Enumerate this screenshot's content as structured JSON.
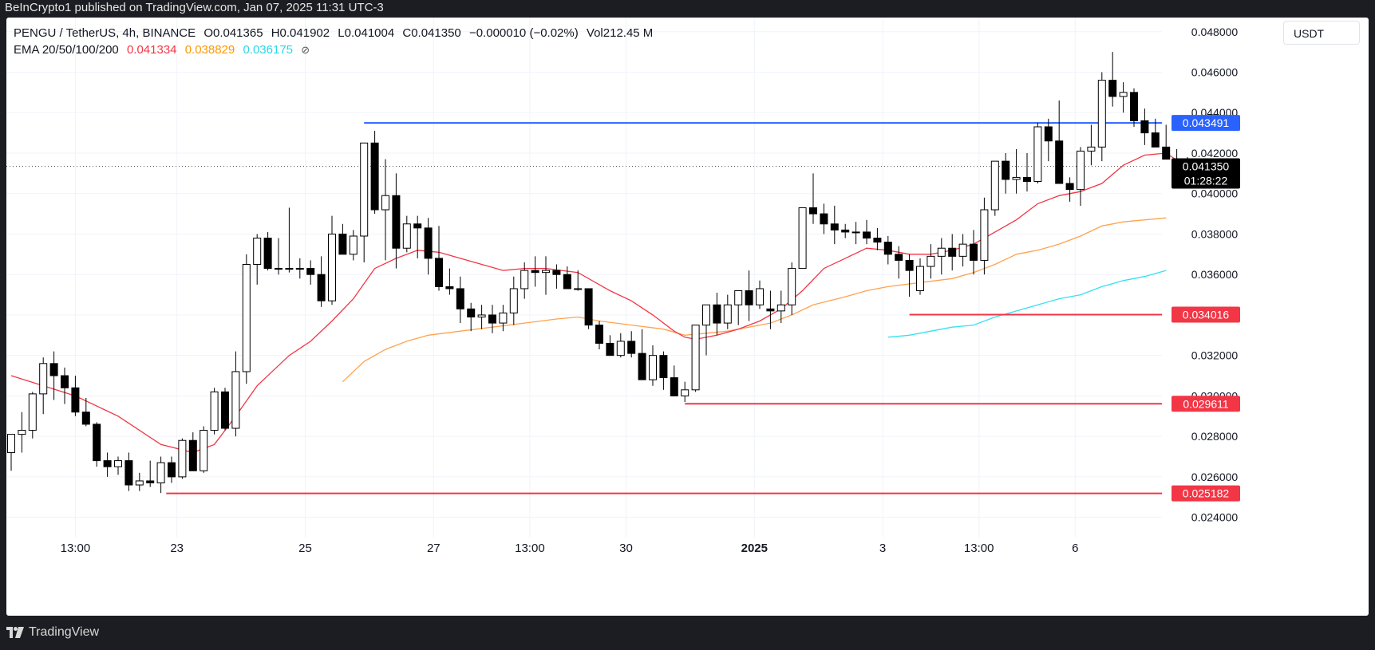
{
  "header": {
    "publisher": "BeInCrypto1 published on TradingView.com, Jan 07, 2025 11:31 UTC-3"
  },
  "legend": {
    "symbol": "PENGU / TetherUS, 4h, BINANCE",
    "open": "O0.041365",
    "high": "H0.041902",
    "low": "L0.041004",
    "close": "C0.041350",
    "change": "−0.000010 (−0.02%)",
    "volume": "Vol212.45 M",
    "ema_label": "EMA 20/50/100/200",
    "ema20": "0.041334",
    "ema50": "0.038829",
    "ema100": "0.036175",
    "eye_icon": "eye-off-icon"
  },
  "currency_button": "USDT",
  "footer": {
    "brand": "TradingView"
  },
  "colors": {
    "up": "#ffffff",
    "down": "#000000",
    "wick": "#000000",
    "ema20": "#f23645",
    "ema50": "#ffa24d",
    "ema100": "#33e1f2",
    "resistance": "#2962ff",
    "support": "#f23645"
  },
  "chart_data": {
    "type": "candlestick",
    "title": "PENGU / TetherUS, 4h, BINANCE",
    "currency": "USDT",
    "y_ticks": [
      "0.024000",
      "0.026000",
      "0.028000",
      "0.030000",
      "0.032000",
      "0.034000",
      "0.036000",
      "0.038000",
      "0.040000",
      "0.042000",
      "0.044000",
      "0.046000",
      "0.048000"
    ],
    "ylim": [
      0.023,
      0.0487
    ],
    "x_labels": [
      {
        "label": "13:00",
        "bar": 6
      },
      {
        "label": "23",
        "bar": 15.5
      },
      {
        "label": "25",
        "bar": 27.5
      },
      {
        "label": "27",
        "bar": 39.5
      },
      {
        "label": "13:00",
        "bar": 48.5
      },
      {
        "label": "30",
        "bar": 57.5
      },
      {
        "label": "2025",
        "bar": 69.5,
        "bold": true
      },
      {
        "label": "3",
        "bar": 81.5
      },
      {
        "label": "13:00",
        "bar": 90.5
      },
      {
        "label": "6",
        "bar": 99.5
      }
    ],
    "candles": [
      [
        0.0272,
        0.0281,
        0.0263,
        0.0281
      ],
      [
        0.0281,
        0.0292,
        0.0272,
        0.0283
      ],
      [
        0.0283,
        0.0302,
        0.0279,
        0.0301
      ],
      [
        0.0301,
        0.0319,
        0.0291,
        0.0316
      ],
      [
        0.0316,
        0.0322,
        0.0298,
        0.031
      ],
      [
        0.031,
        0.0314,
        0.0296,
        0.0304
      ],
      [
        0.0304,
        0.031,
        0.029,
        0.0292
      ],
      [
        0.0292,
        0.0299,
        0.0285,
        0.0286
      ],
      [
        0.0286,
        0.0287,
        0.0265,
        0.0268
      ],
      [
        0.0268,
        0.0272,
        0.026,
        0.0265
      ],
      [
        0.0265,
        0.027,
        0.0261,
        0.0268
      ],
      [
        0.0268,
        0.0272,
        0.0253,
        0.0256
      ],
      [
        0.0256,
        0.0262,
        0.0253,
        0.0258
      ],
      [
        0.0258,
        0.0268,
        0.0255,
        0.0257
      ],
      [
        0.0257,
        0.027,
        0.0252,
        0.0267
      ],
      [
        0.0267,
        0.027,
        0.0257,
        0.026
      ],
      [
        0.026,
        0.0279,
        0.0259,
        0.0278
      ],
      [
        0.0278,
        0.0282,
        0.0263,
        0.0263
      ],
      [
        0.0263,
        0.0285,
        0.0262,
        0.0283
      ],
      [
        0.0283,
        0.0304,
        0.0281,
        0.0302
      ],
      [
        0.0302,
        0.0304,
        0.0283,
        0.0284
      ],
      [
        0.0284,
        0.0322,
        0.028,
        0.0312
      ],
      [
        0.0312,
        0.037,
        0.0306,
        0.0365
      ],
      [
        0.0365,
        0.038,
        0.0355,
        0.0378
      ],
      [
        0.0378,
        0.0381,
        0.0362,
        0.0363
      ],
      [
        0.0363,
        0.0378,
        0.036,
        0.0363
      ],
      [
        0.0363,
        0.0393,
        0.0361,
        0.0363
      ],
      [
        0.0363,
        0.0368,
        0.0358,
        0.0363
      ],
      [
        0.0363,
        0.0367,
        0.0355,
        0.036
      ],
      [
        0.036,
        0.0369,
        0.0344,
        0.0347
      ],
      [
        0.0347,
        0.0389,
        0.0345,
        0.038
      ],
      [
        0.038,
        0.0385,
        0.037,
        0.037
      ],
      [
        0.037,
        0.0382,
        0.0367,
        0.0379
      ],
      [
        0.0379,
        0.0423,
        0.0366,
        0.0425
      ],
      [
        0.0425,
        0.0431,
        0.039,
        0.0392
      ],
      [
        0.0392,
        0.0417,
        0.0367,
        0.0399
      ],
      [
        0.0399,
        0.041,
        0.0363,
        0.0373
      ],
      [
        0.0373,
        0.0389,
        0.0371,
        0.0385
      ],
      [
        0.0385,
        0.0389,
        0.0368,
        0.0383
      ],
      [
        0.0383,
        0.0388,
        0.036,
        0.0368
      ],
      [
        0.0368,
        0.0384,
        0.0352,
        0.0354
      ],
      [
        0.0354,
        0.0363,
        0.035,
        0.0353
      ],
      [
        0.0353,
        0.0359,
        0.0336,
        0.0343
      ],
      [
        0.0343,
        0.0346,
        0.0332,
        0.0339
      ],
      [
        0.0339,
        0.0345,
        0.0333,
        0.034
      ],
      [
        0.034,
        0.0345,
        0.0331,
        0.0336
      ],
      [
        0.0336,
        0.0345,
        0.0332,
        0.0341
      ],
      [
        0.0341,
        0.0359,
        0.0335,
        0.0353
      ],
      [
        0.0353,
        0.0366,
        0.0348,
        0.0362
      ],
      [
        0.0362,
        0.0369,
        0.0354,
        0.0361
      ],
      [
        0.0361,
        0.0369,
        0.035,
        0.0362
      ],
      [
        0.0362,
        0.0365,
        0.0353,
        0.036
      ],
      [
        0.036,
        0.0364,
        0.0353,
        0.0353
      ],
      [
        0.0353,
        0.0362,
        0.0352,
        0.0353
      ],
      [
        0.0353,
        0.0353,
        0.0333,
        0.0335
      ],
      [
        0.0335,
        0.0337,
        0.0323,
        0.0326
      ],
      [
        0.0326,
        0.033,
        0.0321,
        0.032
      ],
      [
        0.032,
        0.0331,
        0.0319,
        0.0327
      ],
      [
        0.0327,
        0.0332,
        0.0319,
        0.0321
      ],
      [
        0.0321,
        0.0333,
        0.031,
        0.0308
      ],
      [
        0.0308,
        0.0325,
        0.0305,
        0.032
      ],
      [
        0.032,
        0.0322,
        0.0303,
        0.0309
      ],
      [
        0.0309,
        0.0315,
        0.03,
        0.03
      ],
      [
        0.03,
        0.0307,
        0.0297,
        0.0303
      ],
      [
        0.0303,
        0.0335,
        0.0302,
        0.0335
      ],
      [
        0.0335,
        0.0345,
        0.032,
        0.0345
      ],
      [
        0.0345,
        0.0351,
        0.033,
        0.0336
      ],
      [
        0.0336,
        0.035,
        0.0333,
        0.0345
      ],
      [
        0.0345,
        0.035,
        0.0335,
        0.0352
      ],
      [
        0.0352,
        0.0362,
        0.0337,
        0.0345
      ],
      [
        0.0345,
        0.0357,
        0.0343,
        0.0353
      ],
      [
        0.0343,
        0.0352,
        0.0333,
        0.0342
      ],
      [
        0.0342,
        0.0352,
        0.0336,
        0.0345
      ],
      [
        0.0345,
        0.0366,
        0.034,
        0.0363
      ],
      [
        0.0363,
        0.0393,
        0.0363,
        0.0393
      ],
      [
        0.0393,
        0.041,
        0.0385,
        0.039
      ],
      [
        0.039,
        0.0395,
        0.038,
        0.0385
      ],
      [
        0.0385,
        0.0394,
        0.0375,
        0.0382
      ],
      [
        0.0382,
        0.0385,
        0.0378,
        0.0381
      ],
      [
        0.0381,
        0.0386,
        0.0375,
        0.0381
      ],
      [
        0.0381,
        0.0387,
        0.0375,
        0.0378
      ],
      [
        0.0378,
        0.0383,
        0.0372,
        0.0376
      ],
      [
        0.0376,
        0.0379,
        0.0365,
        0.037
      ],
      [
        0.037,
        0.0374,
        0.0358,
        0.0367
      ],
      [
        0.0367,
        0.037,
        0.0349,
        0.0362
      ],
      [
        0.0352,
        0.0368,
        0.035,
        0.0364
      ],
      [
        0.0364,
        0.0375,
        0.0358,
        0.0369
      ],
      [
        0.0369,
        0.0378,
        0.036,
        0.0373
      ],
      [
        0.0373,
        0.038,
        0.0362,
        0.0369
      ],
      [
        0.0369,
        0.038,
        0.0364,
        0.0375
      ],
      [
        0.0375,
        0.0382,
        0.036,
        0.0367
      ],
      [
        0.0367,
        0.0398,
        0.036,
        0.0392
      ],
      [
        0.0392,
        0.0416,
        0.0389,
        0.0416
      ],
      [
        0.0416,
        0.042,
        0.04,
        0.0407
      ],
      [
        0.0407,
        0.0422,
        0.04,
        0.0408
      ],
      [
        0.0408,
        0.042,
        0.0401,
        0.0406
      ],
      [
        0.0406,
        0.0435,
        0.0405,
        0.0433
      ],
      [
        0.0433,
        0.0437,
        0.0416,
        0.0426
      ],
      [
        0.0426,
        0.0446,
        0.0405,
        0.0405
      ],
      [
        0.0405,
        0.0408,
        0.0396,
        0.0402
      ],
      [
        0.0402,
        0.0423,
        0.0394,
        0.0421
      ],
      [
        0.0421,
        0.0434,
        0.0414,
        0.0423
      ],
      [
        0.0423,
        0.046,
        0.0416,
        0.0456
      ],
      [
        0.0456,
        0.047,
        0.0443,
        0.0448
      ],
      [
        0.0448,
        0.0455,
        0.044,
        0.045
      ],
      [
        0.045,
        0.0452,
        0.0433,
        0.0436
      ],
      [
        0.0436,
        0.0442,
        0.0424,
        0.043
      ],
      [
        0.043,
        0.0437,
        0.0423,
        0.0423
      ],
      [
        0.0423,
        0.0434,
        0.0418,
        0.0417
      ],
      [
        0.0417,
        0.0422,
        0.0413,
        0.0414
      ],
      [
        0.0413,
        0.0418,
        0.041,
        0.0414
      ]
    ],
    "ema20": [
      [
        0,
        0.031
      ],
      [
        6,
        0.03
      ],
      [
        10,
        0.029
      ],
      [
        14,
        0.0276
      ],
      [
        17,
        0.0272
      ],
      [
        19,
        0.0276
      ],
      [
        21,
        0.029
      ],
      [
        23,
        0.0305
      ],
      [
        26,
        0.032
      ],
      [
        28,
        0.0327
      ],
      [
        30,
        0.0337
      ],
      [
        32,
        0.0348
      ],
      [
        34,
        0.0363
      ],
      [
        36,
        0.0368
      ],
      [
        38,
        0.0372
      ],
      [
        40,
        0.0371
      ],
      [
        42,
        0.0368
      ],
      [
        44,
        0.0365
      ],
      [
        46,
        0.0362
      ],
      [
        48,
        0.0363
      ],
      [
        50,
        0.0363
      ],
      [
        53,
        0.0361
      ],
      [
        56,
        0.0352
      ],
      [
        58,
        0.0347
      ],
      [
        60,
        0.034
      ],
      [
        62,
        0.0332
      ],
      [
        63,
        0.0329
      ],
      [
        64,
        0.0328
      ],
      [
        66,
        0.033
      ],
      [
        68,
        0.0333
      ],
      [
        70,
        0.0337
      ],
      [
        72,
        0.0343
      ],
      [
        74,
        0.0352
      ],
      [
        76,
        0.0363
      ],
      [
        78,
        0.0368
      ],
      [
        80,
        0.0373
      ],
      [
        82,
        0.0372
      ],
      [
        84,
        0.037
      ],
      [
        86,
        0.037
      ],
      [
        88,
        0.0372
      ],
      [
        90,
        0.0375
      ],
      [
        92,
        0.0381
      ],
      [
        94,
        0.0387
      ],
      [
        96,
        0.0395
      ],
      [
        98,
        0.0399
      ],
      [
        100,
        0.0401
      ],
      [
        102,
        0.0405
      ],
      [
        104,
        0.0414
      ],
      [
        106,
        0.0419
      ],
      [
        108,
        0.042
      ],
      [
        110,
        0.0413
      ],
      [
        111,
        0.0413
      ]
    ],
    "ema50": [
      [
        31,
        0.0307
      ],
      [
        33,
        0.0317
      ],
      [
        35,
        0.0323
      ],
      [
        37,
        0.0327
      ],
      [
        39,
        0.033
      ],
      [
        42,
        0.0332
      ],
      [
        45,
        0.0334
      ],
      [
        48,
        0.0336
      ],
      [
        51,
        0.0338
      ],
      [
        53,
        0.0339
      ],
      [
        55,
        0.0337
      ],
      [
        58,
        0.0335
      ],
      [
        61,
        0.0333
      ],
      [
        63,
        0.033
      ],
      [
        65,
        0.0331
      ],
      [
        67,
        0.0332
      ],
      [
        69,
        0.0334
      ],
      [
        71,
        0.0336
      ],
      [
        73,
        0.034
      ],
      [
        75,
        0.0345
      ],
      [
        78,
        0.0349
      ],
      [
        80,
        0.0352
      ],
      [
        82,
        0.0354
      ],
      [
        85,
        0.0356
      ],
      [
        88,
        0.0358
      ],
      [
        90,
        0.0361
      ],
      [
        92,
        0.0365
      ],
      [
        94,
        0.037
      ],
      [
        96,
        0.0372
      ],
      [
        98,
        0.0375
      ],
      [
        100,
        0.0379
      ],
      [
        102,
        0.0384
      ],
      [
        104,
        0.0386
      ],
      [
        106,
        0.0387
      ],
      [
        108,
        0.0388
      ]
    ],
    "ema100": [
      [
        82,
        0.0329
      ],
      [
        84,
        0.033
      ],
      [
        86,
        0.0332
      ],
      [
        88,
        0.0334
      ],
      [
        90,
        0.0335
      ],
      [
        92,
        0.0339
      ],
      [
        94,
        0.0342
      ],
      [
        96,
        0.0345
      ],
      [
        98,
        0.0348
      ],
      [
        100,
        0.035
      ],
      [
        102,
        0.0354
      ],
      [
        104,
        0.0357
      ],
      [
        106,
        0.0359
      ],
      [
        108,
        0.0362
      ]
    ],
    "hlines": [
      {
        "value": 0.043491,
        "label": "0.043491",
        "color": "#2962ff",
        "from_bar": 33
      },
      {
        "value": 0.034016,
        "label": "0.034016",
        "color": "#f23645",
        "from_bar": 84
      },
      {
        "value": 0.029611,
        "label": "0.029611",
        "color": "#f23645",
        "from_bar": 63
      },
      {
        "value": 0.025182,
        "label": "0.025182",
        "color": "#f23645",
        "from_bar": 14.5
      }
    ],
    "last_price": {
      "value": 0.04135,
      "label": "0.041350",
      "countdown": "01:28:22"
    },
    "grid": true
  }
}
